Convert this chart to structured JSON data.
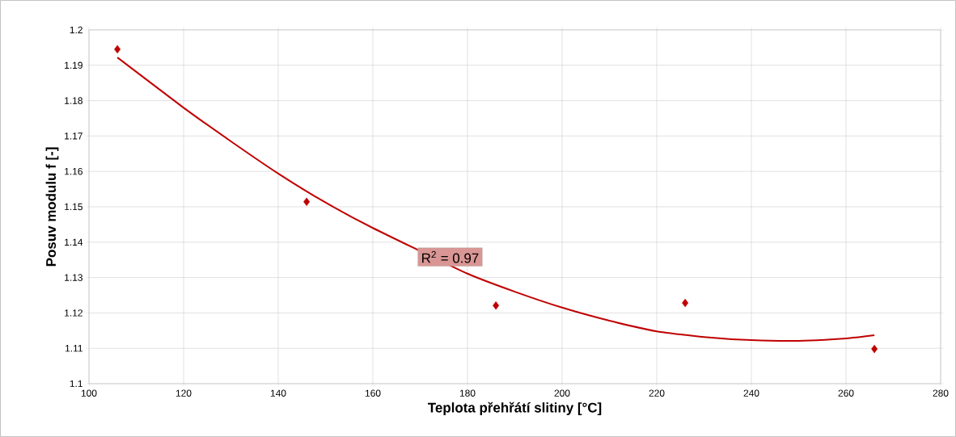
{
  "chart_data": {
    "type": "scatter",
    "xlabel": "Teplota přehřátí slitiny [°C]",
    "ylabel": "Posuv modulu f [-]",
    "x": [
      106,
      146,
      186,
      226,
      266
    ],
    "series": [
      {
        "color": "#c00000",
        "marker": "diamond",
        "values": [
          1.1945,
          1.1514,
          1.1221,
          1.1228,
          1.1098
        ]
      },
      {
        "type": "line",
        "color": "#c00000",
        "line_style": "solid",
        "x": [
          106,
          120,
          130,
          140,
          150,
          160,
          180,
          190,
          200,
          210,
          220,
          230,
          240,
          250,
          260,
          266
        ],
        "values": [
          1.1922,
          1.178,
          1.1685,
          1.1594,
          1.1512,
          1.144,
          1.1311,
          1.126,
          1.1215,
          1.1178,
          1.1148,
          1.1132,
          1.1123,
          1.1121,
          1.1128,
          1.1137
        ]
      }
    ],
    "annotations": [
      "R$^{2}$ = 0.97"
    ],
    "xlim": [
      100,
      280
    ],
    "xticks": [
      100,
      120,
      140,
      160,
      180,
      200,
      220,
      240,
      260,
      280
    ],
    "ylim": [
      1.1,
      1.2
    ],
    "yticks": [
      1.1,
      1.11,
      1.12,
      1.13,
      1.14,
      1.15,
      1.16,
      1.17,
      1.18,
      1.19,
      1.2
    ],
    "grid": true
  }
}
